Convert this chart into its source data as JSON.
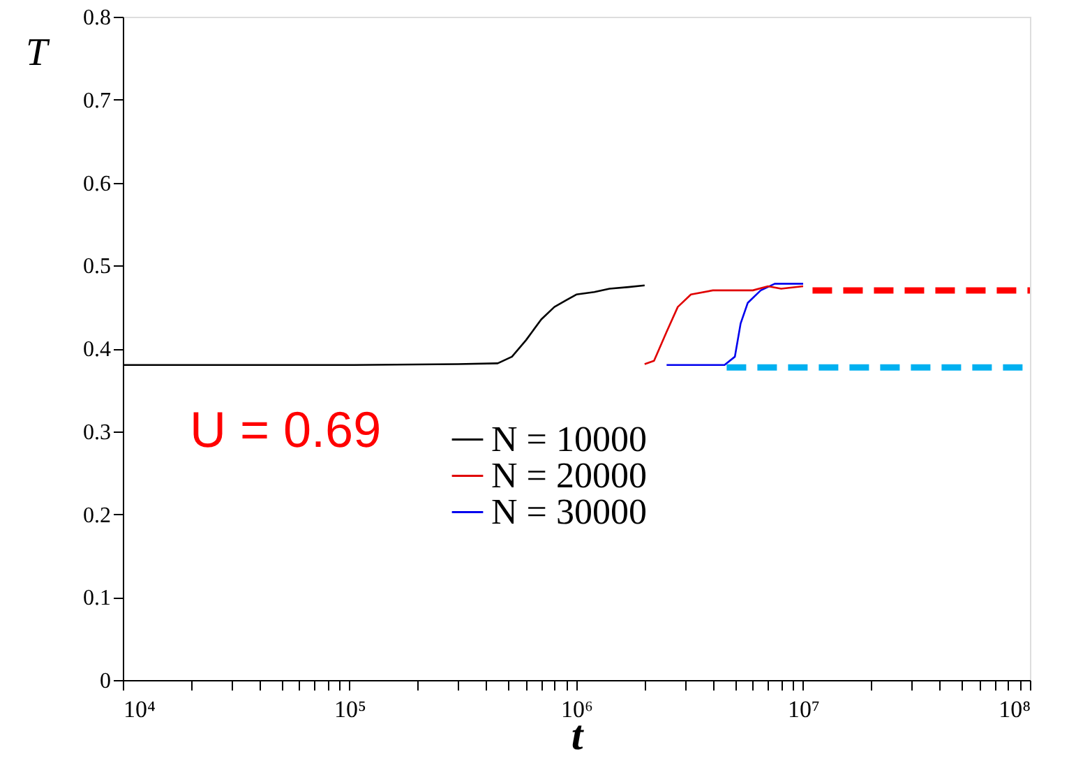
{
  "chart_data": {
    "type": "line",
    "xlabel": "t",
    "ylabel": "T",
    "log": "x",
    "xlim": [
      10000,
      100000000
    ],
    "ylim": [
      0,
      0.8
    ],
    "xticks": [
      {
        "value": 10000,
        "label": "10⁴"
      },
      {
        "value": 20000,
        "label": null
      },
      {
        "value": 30000,
        "label": null
      },
      {
        "value": 40000,
        "label": null
      },
      {
        "value": 50000,
        "label": null
      },
      {
        "value": 60000,
        "label": null
      },
      {
        "value": 70000,
        "label": null
      },
      {
        "value": 80000,
        "label": null
      },
      {
        "value": 90000,
        "label": null
      },
      {
        "value": 100000,
        "label": "10⁵"
      },
      {
        "value": 200000,
        "label": null
      },
      {
        "value": 300000,
        "label": null
      },
      {
        "value": 400000,
        "label": null
      },
      {
        "value": 500000,
        "label": null
      },
      {
        "value": 600000,
        "label": null
      },
      {
        "value": 700000,
        "label": null
      },
      {
        "value": 800000,
        "label": null
      },
      {
        "value": 900000,
        "label": null
      },
      {
        "value": 1000000,
        "label": "10⁶"
      },
      {
        "value": 2000000,
        "label": null
      },
      {
        "value": 3000000,
        "label": null
      },
      {
        "value": 4000000,
        "label": null
      },
      {
        "value": 5000000,
        "label": null
      },
      {
        "value": 6000000,
        "label": null
      },
      {
        "value": 7000000,
        "label": null
      },
      {
        "value": 8000000,
        "label": null
      },
      {
        "value": 9000000,
        "label": null
      },
      {
        "value": 10000000,
        "label": "10⁷"
      },
      {
        "value": 20000000,
        "label": null
      },
      {
        "value": 30000000,
        "label": null
      },
      {
        "value": 40000000,
        "label": null
      },
      {
        "value": 50000000,
        "label": null
      },
      {
        "value": 60000000,
        "label": null
      },
      {
        "value": 70000000,
        "label": null
      },
      {
        "value": 80000000,
        "label": null
      },
      {
        "value": 90000000,
        "label": null
      },
      {
        "value": 100000000,
        "label": "10⁸"
      }
    ],
    "yticks": [
      0,
      0.1,
      0.2,
      0.3,
      0.4,
      0.5,
      0.6,
      0.7,
      0.8
    ],
    "grid": false,
    "legend": "center",
    "marker": "none",
    "annotations": [
      "U = 0.69"
    ],
    "series": [
      {
        "name": "N = 10000",
        "color": "#000000",
        "line_style": "solid",
        "x": [
          10000,
          30000,
          100000,
          300000,
          450000,
          520000,
          600000,
          700000,
          800000,
          900000,
          1000000,
          1200000,
          1400000,
          1700000,
          2000000
        ],
        "values": [
          0.38,
          0.38,
          0.38,
          0.381,
          0.382,
          0.39,
          0.41,
          0.435,
          0.45,
          0.458,
          0.465,
          0.468,
          0.472,
          0.474,
          0.476
        ]
      },
      {
        "name": "N = 20000",
        "color": "#e00000",
        "line_style": "solid",
        "x": [
          2000000,
          2200000,
          2500000,
          2800000,
          3200000,
          4000000,
          5000000,
          6000000,
          7000000,
          8000000,
          10000000
        ],
        "values": [
          0.381,
          0.385,
          0.42,
          0.45,
          0.465,
          0.47,
          0.47,
          0.47,
          0.475,
          0.472,
          0.475
        ]
      },
      {
        "name": "N = 30000",
        "color": "#0000ee",
        "line_style": "solid",
        "x": [
          2500000,
          4500000,
          5000000,
          5300000,
          5700000,
          6500000,
          7500000,
          8500000,
          10000000
        ],
        "values": [
          0.38,
          0.38,
          0.39,
          0.43,
          0.455,
          0.47,
          0.478,
          0.478,
          0.478
        ]
      },
      {
        "color": "#ff0000",
        "line_style": "dashed",
        "x": [
          11000000,
          100000000
        ],
        "values": [
          0.47,
          0.47
        ]
      },
      {
        "color": "#00b0f0",
        "line_style": "dashed",
        "x": [
          4600000,
          100000000
        ],
        "values": [
          0.377,
          0.377
        ]
      }
    ]
  }
}
